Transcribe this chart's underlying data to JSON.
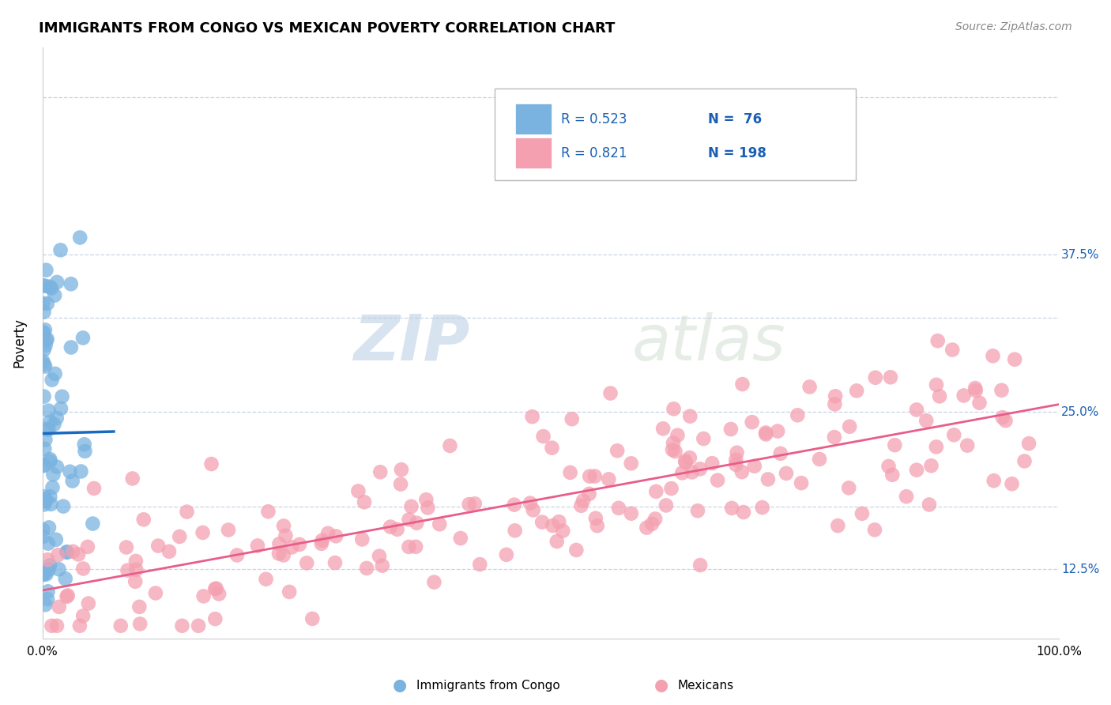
{
  "title": "IMMIGRANTS FROM CONGO VS MEXICAN POVERTY CORRELATION CHART",
  "source": "Source: ZipAtlas.com",
  "ylabel": "Poverty",
  "watermark_zip": "ZIP",
  "watermark_atlas": "atlas",
  "xlim": [
    0.0,
    1.0
  ],
  "ylim": [
    0.07,
    0.54
  ],
  "congo_R": 0.523,
  "congo_N": 76,
  "mexican_R": 0.821,
  "mexican_N": 198,
  "congo_color": "#7ab3e0",
  "mexican_color": "#f4a0b0",
  "congo_line_color": "#1a6bbf",
  "mexican_line_color": "#e85d8a",
  "legend_text_color": "#1a5fb4",
  "background_color": "#ffffff",
  "grid_color": "#c8d4e8",
  "seed": 42
}
